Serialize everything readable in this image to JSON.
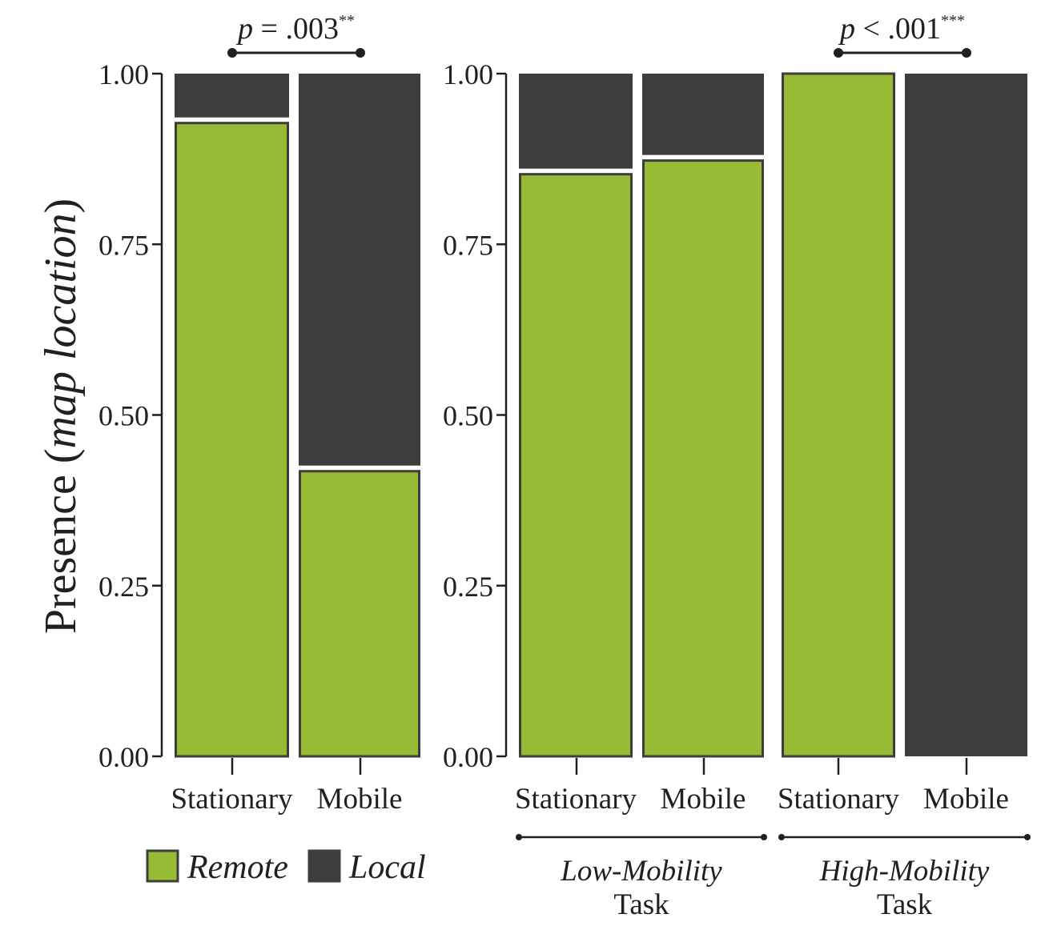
{
  "colors": {
    "remote": "#97bb34",
    "local": "#3d3d3d",
    "outline": "#3d3d3d",
    "ink": "#231f20"
  },
  "ylabel_main": "Presence (",
  "ylabel_italic": "map location",
  "ylabel_close": ")",
  "chart_data": [
    {
      "type": "bar",
      "stacked": true,
      "normalized": true,
      "categories": [
        "Stationary",
        "Mobile"
      ],
      "series": [
        {
          "name": "Remote",
          "values": [
            0.93,
            0.42
          ]
        },
        {
          "name": "Local",
          "values": [
            0.07,
            0.58
          ]
        }
      ],
      "ylim": [
        0,
        1
      ],
      "yticks": [
        "0.00",
        "0.25",
        "0.50",
        "0.75",
        "1.00"
      ],
      "annotation": {
        "p_italic": "p",
        "p_text": " = .003",
        "stars": "**",
        "between": [
          "Stationary",
          "Mobile"
        ]
      }
    },
    {
      "type": "bar",
      "stacked": true,
      "normalized": true,
      "categories": [
        "Stationary",
        "Mobile",
        "Stationary",
        "Mobile"
      ],
      "groups": [
        {
          "line1": "Low-Mobility",
          "line2": "Task"
        },
        {
          "line1": "High-Mobility",
          "line2": "Task"
        }
      ],
      "series": [
        {
          "name": "Remote",
          "values": [
            0.855,
            0.875,
            1.0,
            0.0
          ]
        },
        {
          "name": "Local",
          "values": [
            0.145,
            0.125,
            0.0,
            1.0
          ]
        }
      ],
      "ylim": [
        0,
        1
      ],
      "yticks": [
        "0.00",
        "0.25",
        "0.50",
        "0.75",
        "1.00"
      ],
      "annotation": {
        "p_italic": "p",
        "p_text": " < .001",
        "stars": "***",
        "between": [
          "Stationary",
          "Mobile"
        ],
        "group": "High-Mobility"
      }
    }
  ],
  "legend": [
    {
      "label": "Remote",
      "color": "#97bb34"
    },
    {
      "label": "Local",
      "color": "#3d3d3d"
    }
  ]
}
